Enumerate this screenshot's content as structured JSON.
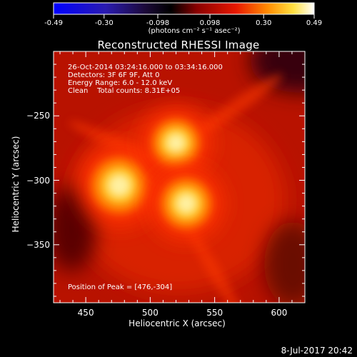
{
  "chart_data": {
    "type": "heatmap",
    "title": "Reconstructed RHESSI Image",
    "xlabel": "Heliocentric X (arcsec)",
    "ylabel": "Heliocentric Y (arcsec)",
    "xlim": [
      425,
      620
    ],
    "ylim": [
      -395,
      -200
    ],
    "x_ticks": [
      "450",
      "500",
      "550",
      "600"
    ],
    "y_ticks": [
      "-250",
      "-300",
      "-350"
    ],
    "colorbar": {
      "min": -0.49,
      "max": 0.49,
      "tick_labels": [
        "-0.49",
        "-0.30",
        "-0.098",
        "0.098",
        "0.30",
        "0.49"
      ],
      "tick_values": [
        -0.49,
        -0.3,
        -0.098,
        0.098,
        0.3,
        0.49
      ],
      "units": "(photons cm⁻² s⁻¹ asec⁻²)"
    },
    "annotations": [
      "26-Oct-2014 03:24:16.000 to 03:34:16.000",
      "Detectors: 3F 6F 9F, Att 0",
      "Energy Range: 6.0 - 12.0 keV",
      "Clean    Total counts: 8.31E+05"
    ],
    "peak_label": "Position of Peak = [476,-304]",
    "sources": [
      {
        "x": 476,
        "y": -304,
        "intensity": 0.49
      },
      {
        "x": 520,
        "y": -271,
        "intensity": 0.4
      },
      {
        "x": 528,
        "y": -318,
        "intensity": 0.43
      }
    ]
  },
  "footer": {
    "date": "8-Jul-2017 20:42"
  },
  "colors": {
    "background": "#000000",
    "foreground": "#ffffff"
  }
}
